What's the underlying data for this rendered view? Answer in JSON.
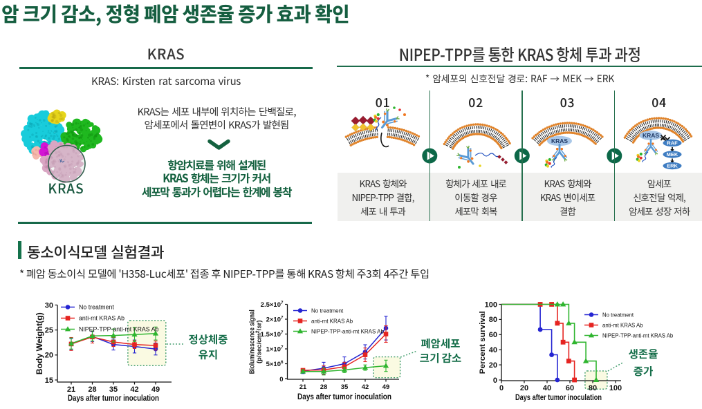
{
  "title": "암 크기 감소, 정형 폐암 생존율 증가 효과 확인",
  "left_panel": {
    "heading": "KRAS",
    "subheading": "KRAS: Kirsten rat sarcoma virus",
    "protein_image_label": "KRAS",
    "body_line1": "KRAS는 세포 내부에 위치하는 단백질로,",
    "body_line2": "암세포에서 돌연변이 KRAS가 발현됨",
    "conclusion_line1": "항암치료를 위해 설계된",
    "conclusion_line2": "KRAS 항체는 크기가 커서",
    "conclusion_line3": "세포막 통과가 어렵다는 한계에 봉착"
  },
  "right_panel": {
    "heading": "NIPEP-TPP를 통한 KRAS 항체 투과 과정",
    "note": "* 암세포의 신호전달 경로: RAF → MEK → ERK",
    "molecule_labels": {
      "kras": "KRAS",
      "raf": "RAF",
      "mek": "MEK",
      "erk": "ERK"
    },
    "steps": [
      {
        "num": "01",
        "caption": [
          "KRAS 항체와",
          "NIPEP-TPP 결합,",
          "세포 내 투과"
        ]
      },
      {
        "num": "02",
        "caption": [
          "항체가 세포 내로",
          "이동할 경우",
          "세포막 회복"
        ]
      },
      {
        "num": "03",
        "caption": [
          "KRAS 항체와",
          "KRAS 변이세포",
          "결합"
        ]
      },
      {
        "num": "04",
        "caption": [
          "암세포",
          "신호전달 억제,",
          "암세포 성장 저하"
        ]
      }
    ]
  },
  "results": {
    "heading": "동소이식모델 실험결과",
    "note": "* 폐암 동소이식 모델에 'H358-Luc세포' 접종 후 NIPEP-TPP를 통해 KRAS 항체 주3회 4주간 투입"
  },
  "colors": {
    "title_green": "#155e40",
    "rule_green": "#17694a",
    "accent_green": "#15724b",
    "annotation_green": "#176f4b",
    "series_blue": "#2525d2",
    "series_red": "#e52421",
    "series_green": "#2fb52f",
    "highlight_fill": "#fafadf",
    "highlight_border": "#3c9a68",
    "membrane_orange": "#e0832a",
    "antibody_blue": "#5b9bd5",
    "kras_oval_fill": "#a9c7e8",
    "cascade_oval_fill": "#3f7dc2",
    "play_button_green": "#0c6848",
    "caption_band_gray": "#f0f0ee",
    "diamond_dark_red": "#9b1b30",
    "diamond_yellow": "#f2c12e"
  },
  "chart_data": [
    {
      "type": "line",
      "xlabel": "Days after tumor inoculation",
      "ylabel": "Body Weight(g)",
      "x": [
        21,
        28,
        35,
        42,
        49
      ],
      "ylim": [
        15,
        30
      ],
      "yticks": [
        15,
        20,
        25,
        30
      ],
      "grid": false,
      "legend_position": "top-left-inside",
      "series": [
        {
          "name": "No treatment",
          "marker": "circle",
          "color": "#2525d2",
          "values": [
            22.2,
            23.7,
            22.1,
            21.7,
            21.2
          ],
          "err": [
            1.1,
            1.0,
            1.1,
            1.3,
            1.2
          ]
        },
        {
          "name": "anti-mt KRAS Ab",
          "marker": "square",
          "color": "#e52421",
          "values": [
            22.2,
            23.6,
            22.6,
            22.1,
            21.9
          ],
          "err": [
            1.3,
            1.2,
            0.9,
            0.8,
            0.9
          ]
        },
        {
          "name": "NIPEP-TPP-anti-mt KRAS Ab",
          "marker": "triangle",
          "color": "#2fb52f",
          "values": [
            22.3,
            23.8,
            23.9,
            24.1,
            24.3
          ],
          "err": [
            1.1,
            1.0,
            1.3,
            1.4,
            1.3
          ]
        }
      ],
      "highlight_box": {
        "x": [
          39.8,
          52.4
        ],
        "y": [
          17.9,
          26.9
        ]
      },
      "annotation": [
        "정상체중",
        "유지"
      ]
    },
    {
      "type": "line",
      "xlabel": "Days after tumor inoculation",
      "ylabel": "Bioluminescence signal",
      "ylabel2": "(p/sec/cm²/sr)",
      "x": [
        21,
        28,
        35,
        42,
        49
      ],
      "ylim": [
        0,
        25000000
      ],
      "yticks": [
        0,
        5000000,
        10000000,
        15000000,
        20000000,
        25000000
      ],
      "ytick_labels": [
        "0",
        "5×10⁶",
        "1×10⁷",
        "1.5×10⁷",
        "2×10⁷",
        "2.5×10⁷"
      ],
      "grid": false,
      "legend_position": "top-left-inside",
      "series": [
        {
          "name": "No treatment",
          "marker": "circle",
          "color": "#2525d2",
          "values": [
            2500000,
            3500000,
            5000000,
            9000000,
            17000000
          ],
          "err": [
            800000,
            2000000,
            2300000,
            2400000,
            4000000
          ]
        },
        {
          "name": "anti-mt KRAS Ab",
          "marker": "square",
          "color": "#e52421",
          "values": [
            2800000,
            2900000,
            4000000,
            8000000,
            15000000
          ],
          "err": [
            500000,
            1500000,
            1500000,
            2300000,
            2800000
          ]
        },
        {
          "name": "NIPEP-TPP-anti-mt KRAS Ab",
          "marker": "triangle",
          "color": "#2fb52f",
          "values": [
            2400000,
            2400000,
            2900000,
            3700000,
            4300000
          ],
          "err": [
            500000,
            1200000,
            900000,
            900000,
            1900000
          ]
        }
      ],
      "highlight_box": {
        "x": [
          44.8,
          53.8
        ],
        "y": [
          300000,
          7300000
        ]
      },
      "annotation": [
        "폐암세포",
        "크기 감소"
      ]
    },
    {
      "type": "step",
      "xlabel": "Days after tumor inoculation",
      "ylabel": "Percent survival",
      "xlim": [
        0,
        100
      ],
      "xticks": [
        0,
        20,
        40,
        60,
        80,
        100
      ],
      "ylim": [
        0,
        100
      ],
      "yticks": [
        0,
        20,
        40,
        60,
        80,
        100
      ],
      "grid": false,
      "legend_position": "right-inside",
      "series": [
        {
          "name": "No treatment",
          "marker": "circle",
          "color": "#2525d2",
          "points": [
            [
              0,
              100
            ],
            [
              34,
              100
            ],
            [
              34,
              66.7
            ],
            [
              44,
              66.7
            ],
            [
              44,
              33.3
            ],
            [
              49,
              33.3
            ],
            [
              49,
              0
            ]
          ],
          "markers": [
            [
              34,
              100
            ],
            [
              34,
              66.7
            ],
            [
              44,
              33.3
            ],
            [
              49,
              0
            ]
          ]
        },
        {
          "name": "anti-mt KRAS Ab",
          "marker": "square",
          "color": "#e52421",
          "points": [
            [
              0,
              100
            ],
            [
              49,
              100
            ],
            [
              49,
              75
            ],
            [
              54,
              75
            ],
            [
              54,
              50
            ],
            [
              59,
              50
            ],
            [
              59,
              25
            ],
            [
              64,
              25
            ],
            [
              64,
              0
            ]
          ],
          "markers": [
            [
              34,
              100
            ],
            [
              44,
              100
            ],
            [
              49,
              75
            ],
            [
              54,
              50
            ],
            [
              59,
              25
            ],
            [
              64,
              0
            ]
          ]
        },
        {
          "name": "NIPEP-TPP-anti-mt KRAS Ab",
          "marker": "triangle",
          "color": "#2fb52f",
          "points": [
            [
              0,
              100
            ],
            [
              59,
              100
            ],
            [
              59,
              75
            ],
            [
              64,
              75
            ],
            [
              64,
              50
            ],
            [
              74,
              50
            ],
            [
              74,
              25
            ],
            [
              83,
              25
            ],
            [
              83,
              0
            ]
          ],
          "markers": [
            [
              49,
              100
            ],
            [
              54,
              100
            ],
            [
              59,
              75
            ],
            [
              64,
              50
            ],
            [
              74,
              25
            ],
            [
              83,
              0
            ]
          ]
        }
      ],
      "highlight_box": {
        "x": [
          73.3,
          92.7
        ],
        "y": [
          -12,
          12
        ]
      },
      "annotation": [
        "생존율",
        "증가"
      ]
    }
  ]
}
